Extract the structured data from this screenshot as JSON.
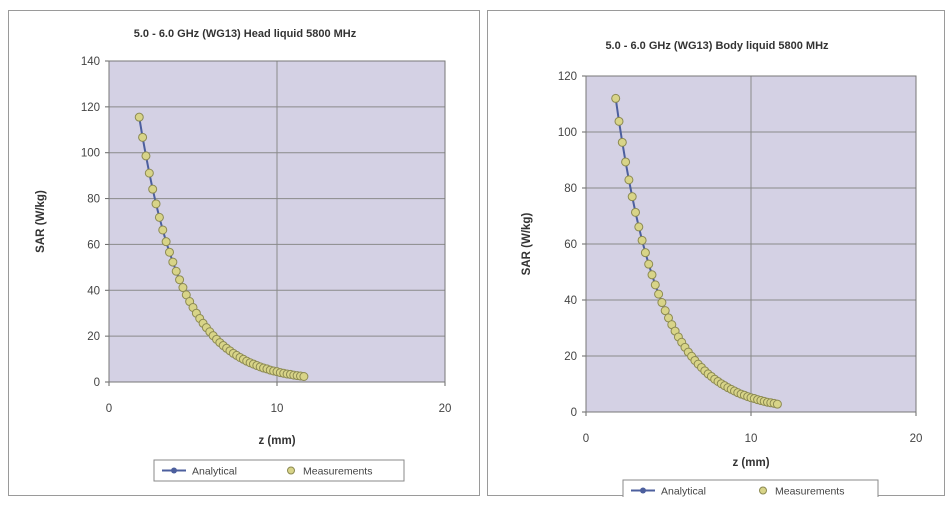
{
  "charts": [
    {
      "title": "5.0 - 6.0 GHz (WG13) Head liquid 5800 MHz",
      "xlabel": "z (mm)",
      "ylabel": "SAR (W/kg)",
      "legend": [
        "Analytical",
        "Measurements"
      ]
    },
    {
      "title": "5.0 - 6.0 GHz (WG13) Body liquid 5800 MHz",
      "xlabel": "z (mm)",
      "ylabel": "SAR (W/kg)",
      "legend": [
        "Analytical",
        "Measurements"
      ]
    }
  ],
  "colors": {
    "plot_bg": "#d4d1e4",
    "grid": "#8a8a8a",
    "analytical": "#4c5f9e",
    "measurement_fill": "#d8d488",
    "measurement_stroke": "#8c8a52"
  },
  "chart_data": [
    {
      "type": "scatter",
      "title": "5.0 - 6.0 GHz (WG13) Head liquid 5800 MHz",
      "xlabel": "z (mm)",
      "ylabel": "SAR (W/kg)",
      "xlim": [
        0,
        20
      ],
      "ylim": [
        0,
        140
      ],
      "xticks": [
        0,
        10,
        20
      ],
      "yticks": [
        0,
        20,
        40,
        60,
        80,
        100,
        120,
        140
      ],
      "grid": true,
      "legend_position": "bottom",
      "series": [
        {
          "name": "Analytical",
          "type": "line",
          "x": [
            1.8,
            2.0,
            2.2,
            2.4,
            2.6,
            2.8,
            3.0,
            3.2,
            3.4,
            3.6,
            3.8,
            4.0,
            4.2,
            4.4,
            4.6,
            4.8,
            5.0,
            5.2,
            5.4,
            5.6,
            5.8,
            6.0,
            6.2,
            6.4,
            6.6,
            6.8,
            7.0,
            7.2,
            7.4,
            7.6,
            7.8,
            8.0,
            8.2,
            8.4,
            8.6,
            8.8,
            9.0,
            9.2,
            9.4,
            9.6,
            9.8,
            10.0,
            10.2,
            10.4,
            10.6,
            10.8,
            11.0,
            11.2,
            11.4,
            11.6
          ],
          "y": [
            115.5,
            106.7,
            98.6,
            91.1,
            84.1,
            77.7,
            71.8,
            66.3,
            61.2,
            56.6,
            52.3,
            48.3,
            44.6,
            41.2,
            38.0,
            35.1,
            32.5,
            30.0,
            27.7,
            25.6,
            23.7,
            21.9,
            20.2,
            18.6,
            17.2,
            15.9,
            14.7,
            13.6,
            12.5,
            11.6,
            10.7,
            9.9,
            9.1,
            8.4,
            7.8,
            7.2,
            6.6,
            6.1,
            5.7,
            5.2,
            4.8,
            4.5,
            4.1,
            3.8,
            3.5,
            3.3,
            3.0,
            2.8,
            2.6,
            2.4
          ]
        },
        {
          "name": "Measurements",
          "type": "scatter",
          "x": [
            1.8,
            2.0,
            2.2,
            2.4,
            2.6,
            2.8,
            3.0,
            3.2,
            3.4,
            3.6,
            3.8,
            4.0,
            4.2,
            4.4,
            4.6,
            4.8,
            5.0,
            5.2,
            5.4,
            5.6,
            5.8,
            6.0,
            6.2,
            6.4,
            6.6,
            6.8,
            7.0,
            7.2,
            7.4,
            7.6,
            7.8,
            8.0,
            8.2,
            8.4,
            8.6,
            8.8,
            9.0,
            9.2,
            9.4,
            9.6,
            9.8,
            10.0,
            10.2,
            10.4,
            10.6,
            10.8,
            11.0,
            11.2,
            11.4,
            11.6
          ],
          "y": [
            115.5,
            106.7,
            98.6,
            91.1,
            84.1,
            77.7,
            71.8,
            66.3,
            61.2,
            56.6,
            52.3,
            48.3,
            44.6,
            41.2,
            38.0,
            35.1,
            32.5,
            30.0,
            27.7,
            25.6,
            23.7,
            21.9,
            20.2,
            18.6,
            17.2,
            15.9,
            14.7,
            13.6,
            12.5,
            11.6,
            10.7,
            9.9,
            9.1,
            8.4,
            7.8,
            7.2,
            6.6,
            6.1,
            5.7,
            5.2,
            4.8,
            4.5,
            4.1,
            3.8,
            3.5,
            3.3,
            3.0,
            2.8,
            2.6,
            2.4
          ]
        }
      ]
    },
    {
      "type": "scatter",
      "title": "5.0 - 6.0 GHz (WG13) Body liquid 5800 MHz",
      "xlabel": "z (mm)",
      "ylabel": "SAR (W/kg)",
      "xlim": [
        0,
        20
      ],
      "ylim": [
        0,
        120
      ],
      "xticks": [
        0,
        10,
        20
      ],
      "yticks": [
        0,
        20,
        40,
        60,
        80,
        100,
        120
      ],
      "grid": true,
      "legend_position": "bottom",
      "series": [
        {
          "name": "Analytical",
          "type": "line",
          "x": [
            1.8,
            2.0,
            2.2,
            2.4,
            2.6,
            2.8,
            3.0,
            3.2,
            3.4,
            3.6,
            3.8,
            4.0,
            4.2,
            4.4,
            4.6,
            4.8,
            5.0,
            5.2,
            5.4,
            5.6,
            5.8,
            6.0,
            6.2,
            6.4,
            6.6,
            6.8,
            7.0,
            7.2,
            7.4,
            7.6,
            7.8,
            8.0,
            8.2,
            8.4,
            8.6,
            8.8,
            9.0,
            9.2,
            9.4,
            9.6,
            9.8,
            10.0,
            10.2,
            10.4,
            10.6,
            10.8,
            11.0,
            11.2,
            11.4,
            11.6
          ],
          "y": [
            112.0,
            103.8,
            96.3,
            89.3,
            82.9,
            76.9,
            71.3,
            66.1,
            61.3,
            56.9,
            52.8,
            49.0,
            45.4,
            42.1,
            39.1,
            36.2,
            33.6,
            31.2,
            28.9,
            26.8,
            24.9,
            23.1,
            21.4,
            19.9,
            18.4,
            17.1,
            15.9,
            14.7,
            13.6,
            12.7,
            11.7,
            10.9,
            10.1,
            9.4,
            8.7,
            8.1,
            7.5,
            6.9,
            6.4,
            6.0,
            5.5,
            5.1,
            4.8,
            4.4,
            4.1,
            3.8,
            3.5,
            3.3,
            3.1,
            2.8
          ]
        },
        {
          "name": "Measurements",
          "type": "scatter",
          "x": [
            1.8,
            2.0,
            2.2,
            2.4,
            2.6,
            2.8,
            3.0,
            3.2,
            3.4,
            3.6,
            3.8,
            4.0,
            4.2,
            4.4,
            4.6,
            4.8,
            5.0,
            5.2,
            5.4,
            5.6,
            5.8,
            6.0,
            6.2,
            6.4,
            6.6,
            6.8,
            7.0,
            7.2,
            7.4,
            7.6,
            7.8,
            8.0,
            8.2,
            8.4,
            8.6,
            8.8,
            9.0,
            9.2,
            9.4,
            9.6,
            9.8,
            10.0,
            10.2,
            10.4,
            10.6,
            10.8,
            11.0,
            11.2,
            11.4,
            11.6
          ],
          "y": [
            112.0,
            103.8,
            96.3,
            89.3,
            82.9,
            76.9,
            71.3,
            66.1,
            61.3,
            56.9,
            52.8,
            49.0,
            45.4,
            42.1,
            39.1,
            36.2,
            33.6,
            31.2,
            28.9,
            26.8,
            24.9,
            23.1,
            21.4,
            19.9,
            18.4,
            17.1,
            15.9,
            14.7,
            13.6,
            12.7,
            11.7,
            10.9,
            10.1,
            9.4,
            8.7,
            8.1,
            7.5,
            6.9,
            6.4,
            6.0,
            5.5,
            5.1,
            4.8,
            4.4,
            4.1,
            3.8,
            3.5,
            3.3,
            3.1,
            2.8
          ]
        }
      ]
    }
  ]
}
